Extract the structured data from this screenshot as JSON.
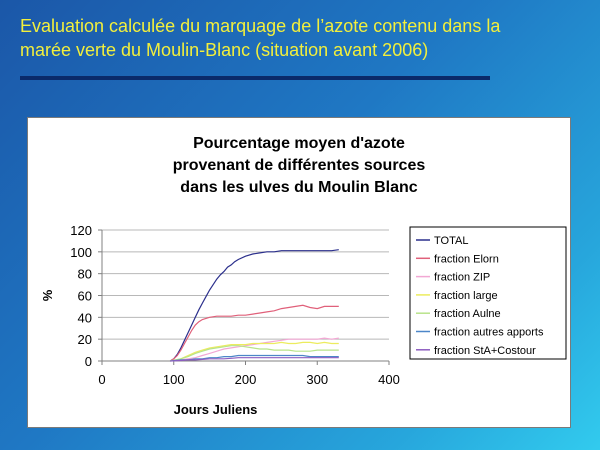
{
  "slide": {
    "title_line1": "Evaluation calculée du marquage de l’azote contenu dans la",
    "title_line2": "marée verte du Moulin-Blanc (situation avant 2006)",
    "accent_color": "#f2ef3c",
    "rule_color": "#0a2a6a"
  },
  "chart_data": {
    "type": "line",
    "title_lines": [
      "Pourcentage moyen d'azote",
      "provenant de différentes sources",
      "dans les ulves du Moulin Blanc"
    ],
    "xlabel": "Jours Juliens",
    "ylabel": "%",
    "xlim": [
      0,
      400
    ],
    "ylim": [
      0,
      120
    ],
    "xticks": [
      0,
      100,
      200,
      300,
      400
    ],
    "yticks": [
      0,
      20,
      40,
      60,
      80,
      100,
      120
    ],
    "grid": "horizontal",
    "legend_position": "right",
    "series": [
      {
        "name": "TOTAL",
        "color": "#2b2f8c",
        "x": [
          95,
          100,
          105,
          110,
          115,
          120,
          125,
          130,
          135,
          140,
          145,
          150,
          155,
          160,
          165,
          170,
          175,
          180,
          185,
          190,
          200,
          210,
          220,
          230,
          240,
          250,
          260,
          280,
          300,
          320,
          330
        ],
        "y": [
          0,
          2,
          6,
          12,
          19,
          26,
          33,
          40,
          47,
          53,
          59,
          65,
          70,
          75,
          79,
          82,
          86,
          88,
          91,
          93,
          96,
          98,
          99,
          100,
          100,
          101,
          101,
          101,
          101,
          101,
          102
        ]
      },
      {
        "name": "fraction Elorn",
        "color": "#e0607a",
        "x": [
          95,
          100,
          105,
          110,
          115,
          120,
          125,
          130,
          135,
          140,
          150,
          160,
          170,
          180,
          190,
          200,
          210,
          220,
          230,
          240,
          250,
          260,
          270,
          280,
          290,
          300,
          310,
          320,
          330
        ],
        "y": [
          0,
          2,
          5,
          10,
          16,
          22,
          28,
          33,
          36,
          38,
          40,
          41,
          41,
          41,
          42,
          42,
          43,
          44,
          45,
          46,
          48,
          49,
          50,
          51,
          49,
          48,
          50,
          50,
          50
        ]
      },
      {
        "name": "fraction ZIP",
        "color": "#f2a8d4",
        "x": [
          95,
          110,
          120,
          130,
          140,
          150,
          160,
          170,
          180,
          190,
          200,
          210,
          220,
          230,
          240,
          250,
          260,
          270,
          280,
          290,
          300,
          310,
          320,
          330
        ],
        "y": [
          0,
          1,
          2,
          3,
          5,
          7,
          9,
          11,
          12,
          13,
          14,
          15,
          16,
          17,
          18,
          19,
          20,
          20,
          20,
          20,
          20,
          21,
          20,
          21
        ]
      },
      {
        "name": "fraction large",
        "color": "#ecec5e",
        "x": [
          95,
          110,
          120,
          130,
          140,
          150,
          160,
          170,
          180,
          190,
          200,
          210,
          220,
          230,
          240,
          250,
          260,
          270,
          280,
          290,
          300,
          310,
          320,
          330
        ],
        "y": [
          0,
          2,
          5,
          8,
          10,
          12,
          13,
          14,
          15,
          15,
          15,
          16,
          16,
          16,
          16,
          17,
          16,
          16,
          17,
          17,
          16,
          17,
          16,
          16
        ]
      },
      {
        "name": "fraction Aulne",
        "color": "#b8e38a",
        "x": [
          95,
          110,
          120,
          130,
          140,
          150,
          160,
          170,
          180,
          190,
          200,
          210,
          220,
          230,
          240,
          250,
          260,
          270,
          280,
          290,
          300,
          310,
          320,
          330
        ],
        "y": [
          0,
          2,
          4,
          7,
          9,
          11,
          12,
          13,
          14,
          14,
          13,
          12,
          11,
          11,
          10,
          10,
          10,
          9,
          9,
          9,
          10,
          10,
          10,
          10
        ]
      },
      {
        "name": "fraction autres apports",
        "color": "#4d86c8",
        "x": [
          95,
          110,
          120,
          130,
          140,
          150,
          160,
          170,
          180,
          190,
          200,
          210,
          220,
          230,
          240,
          250,
          260,
          270,
          280,
          290,
          300,
          310,
          320,
          330
        ],
        "y": [
          0,
          1,
          1,
          2,
          2,
          3,
          3,
          4,
          4,
          5,
          5,
          5,
          5,
          5,
          5,
          5,
          5,
          5,
          5,
          4,
          4,
          4,
          4,
          4
        ]
      },
      {
        "name": "fraction StA+Costour",
        "color": "#8c5cc0",
        "x": [
          95,
          110,
          120,
          130,
          140,
          150,
          160,
          170,
          180,
          190,
          200,
          210,
          220,
          230,
          240,
          250,
          260,
          270,
          280,
          290,
          300,
          310,
          320,
          330
        ],
        "y": [
          0,
          0.5,
          1,
          1,
          1.5,
          2,
          2,
          2,
          2.5,
          3,
          3,
          3,
          3,
          3,
          3,
          3,
          3,
          3,
          3,
          3,
          3,
          3,
          3,
          3
        ]
      }
    ]
  }
}
